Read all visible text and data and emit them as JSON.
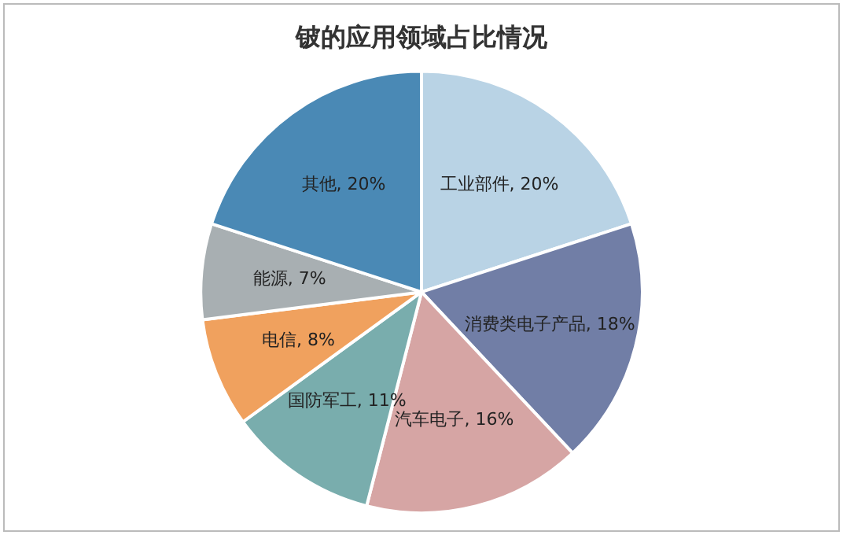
{
  "chart_data": {
    "type": "pie",
    "title": "铍的应用领域占比情况",
    "categories": [
      "工业部件",
      "消费类电子产品",
      "汽车电子",
      "国防军工",
      "电信",
      "能源",
      "其他"
    ],
    "values": [
      20,
      18,
      16,
      11,
      8,
      7,
      20
    ],
    "value_labels": [
      "20%",
      "18%",
      "16%",
      "11%",
      "8%",
      "7%",
      "20%"
    ],
    "colors": [
      "#b9d3e5",
      "#717ea6",
      "#d6a5a4",
      "#79adad",
      "#f0a15e",
      "#a8afb2",
      "#4a89b5"
    ],
    "legend": false
  }
}
